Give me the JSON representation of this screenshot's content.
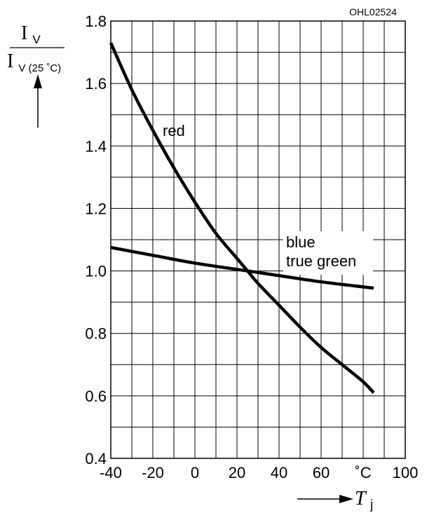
{
  "chart_data": {
    "type": "line",
    "code": "OHL02524",
    "y_label": {
      "numerator": "I",
      "numerator_sub": "V",
      "denominator": "I",
      "denominator_sub": "V (25 ˚C)"
    },
    "x_label": {
      "symbol": "T",
      "sub": "j"
    },
    "x_unit": "˚C",
    "xlim": [
      -40,
      100
    ],
    "ylim": [
      0.4,
      1.8
    ],
    "x_ticks": [
      "-40",
      "-20",
      "0",
      "20",
      "40",
      "60",
      "˚C",
      "100"
    ],
    "y_ticks": [
      "0.4",
      "0.6",
      "0.8",
      "1.0",
      "1.2",
      "1.4",
      "1.6",
      "1.8"
    ],
    "grid": true,
    "series": [
      {
        "name": "red",
        "x": [
          -40,
          -30,
          -20,
          -10,
          0,
          10,
          20,
          25,
          30,
          40,
          50,
          60,
          70,
          80,
          85
        ],
        "y": [
          1.73,
          1.58,
          1.45,
          1.33,
          1.22,
          1.12,
          1.04,
          1.0,
          0.96,
          0.89,
          0.82,
          0.755,
          0.7,
          0.645,
          0.61
        ]
      },
      {
        "name": "blue\ntrue green",
        "x": [
          -40,
          -20,
          0,
          25,
          40,
          60,
          85
        ],
        "y": [
          1.075,
          1.05,
          1.025,
          1.0,
          0.985,
          0.965,
          0.945
        ]
      }
    ]
  }
}
